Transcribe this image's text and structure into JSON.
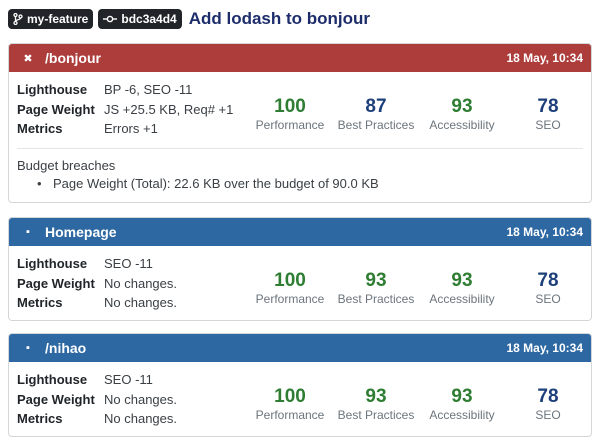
{
  "header": {
    "branch": "my-feature",
    "commit": "bdc3a4d4",
    "title": "Add lodash to bonjour"
  },
  "cards": [
    {
      "status": "fail",
      "status_glyph": "✖",
      "url": "/bonjour",
      "date": "18 May, 10:34",
      "rows": [
        {
          "label": "Lighthouse",
          "value": "BP -6, SEO -11"
        },
        {
          "label": "Page Weight",
          "value": "JS +25.5 KB, Req# +1"
        },
        {
          "label": "Metrics",
          "value": "Errors +1"
        }
      ],
      "scores": [
        {
          "value": "100",
          "category": "Performance",
          "color": "#2e7d32"
        },
        {
          "value": "87",
          "category": "Best Practices",
          "color": "#1d3f7a"
        },
        {
          "value": "93",
          "category": "Accessibility",
          "color": "#2e7d32"
        },
        {
          "value": "78",
          "category": "SEO",
          "color": "#1d3f7a"
        }
      ],
      "breaches_title": "Budget breaches",
      "breaches": [
        "Page Weight (Total): 22.6 KB over the budget of 90.0 KB"
      ]
    },
    {
      "status": "neutral",
      "status_glyph": "▪",
      "url": "Homepage",
      "date": "18 May, 10:34",
      "rows": [
        {
          "label": "Lighthouse",
          "value": "SEO -11"
        },
        {
          "label": "Page Weight",
          "value": "No changes."
        },
        {
          "label": "Metrics",
          "value": "No changes."
        }
      ],
      "scores": [
        {
          "value": "100",
          "category": "Performance",
          "color": "#2e7d32"
        },
        {
          "value": "93",
          "category": "Best Practices",
          "color": "#2e7d32"
        },
        {
          "value": "93",
          "category": "Accessibility",
          "color": "#2e7d32"
        },
        {
          "value": "78",
          "category": "SEO",
          "color": "#1d3f7a"
        }
      ]
    },
    {
      "status": "neutral",
      "status_glyph": "▪",
      "url": "/nihao",
      "date": "18 May, 10:34",
      "rows": [
        {
          "label": "Lighthouse",
          "value": "SEO -11"
        },
        {
          "label": "Page Weight",
          "value": "No changes."
        },
        {
          "label": "Metrics",
          "value": "No changes."
        }
      ],
      "scores": [
        {
          "value": "100",
          "category": "Performance",
          "color": "#2e7d32"
        },
        {
          "value": "93",
          "category": "Best Practices",
          "color": "#2e7d32"
        },
        {
          "value": "93",
          "category": "Accessibility",
          "color": "#2e7d32"
        },
        {
          "value": "78",
          "category": "SEO",
          "color": "#1d3f7a"
        }
      ]
    }
  ]
}
